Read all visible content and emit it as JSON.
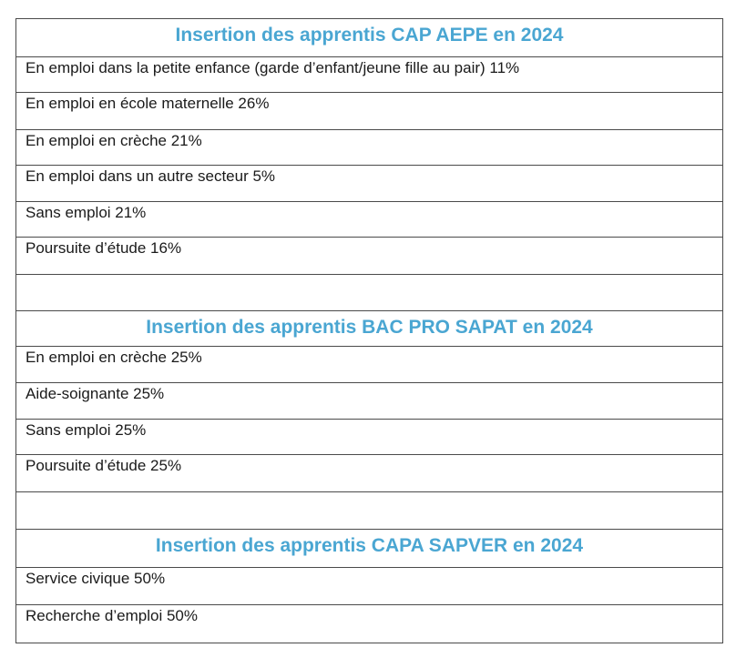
{
  "sections": [
    {
      "title": "Insertion des apprentis CAP AEPE en 2024",
      "rows": [
        "En emploi dans la petite enfance (garde d’enfant/jeune fille au pair) 11%",
        "En emploi en école maternelle 26%",
        "En emploi en crèche 21%",
        "En emploi dans un autre secteur 5%",
        "Sans emploi 21%",
        "Poursuite d’étude 16%"
      ]
    },
    {
      "title": "Insertion des apprentis BAC PRO SAPAT en 2024",
      "rows": [
        "En emploi en crèche 25%",
        "Aide-soignante 25%",
        "Sans emploi 25%",
        "Poursuite d’étude 25%"
      ]
    },
    {
      "title": "Insertion des apprentis CAPA SAPVER en 2024",
      "rows": [
        "Service civique 50%",
        "Recherche d’emploi 50%"
      ]
    }
  ]
}
